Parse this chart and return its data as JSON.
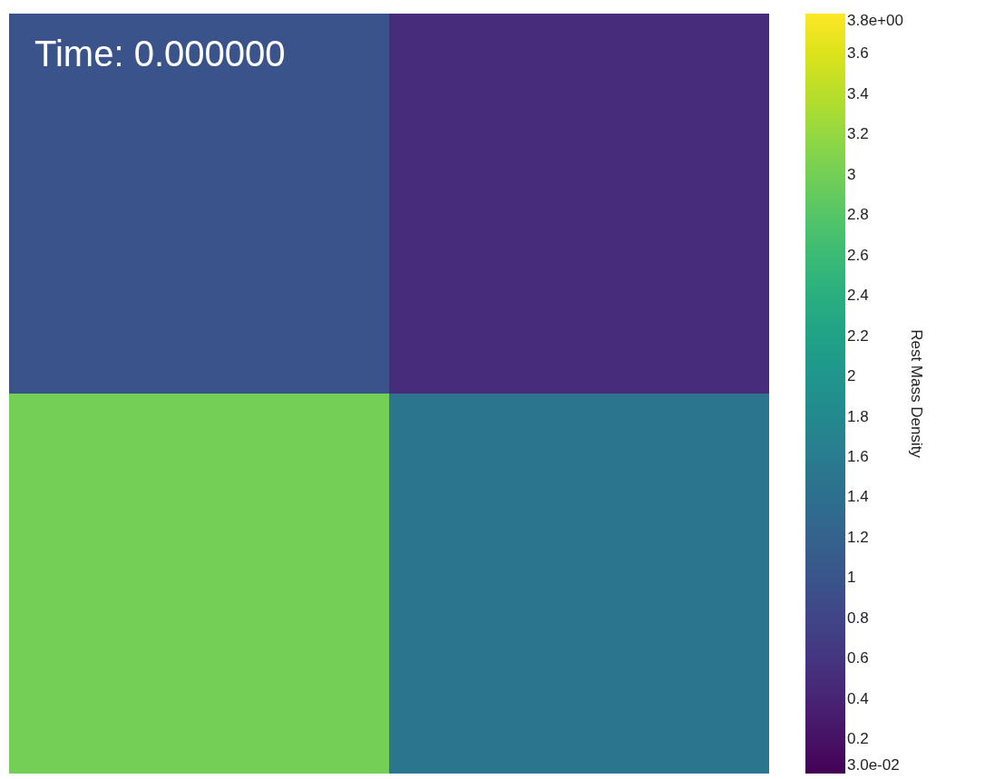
{
  "chart_data": {
    "type": "heatmap",
    "categories": [
      null,
      null
    ],
    "y_categories": [
      null,
      null
    ],
    "cells": [
      [
        1.0,
        0.5
      ],
      [
        3.0,
        1.5
      ]
    ],
    "clim": [
      0.03,
      3.8
    ],
    "cticks": [
      {
        "value": 0.03,
        "label": "3.0e-02"
      },
      0.2,
      0.4,
      0.6,
      0.8,
      1,
      1.2,
      1.4,
      1.6,
      1.8,
      2,
      2.2,
      2.4,
      2.6,
      2.8,
      3,
      3.2,
      3.4,
      3.6,
      {
        "value": 3.8,
        "label": "3.8e+00"
      }
    ],
    "clabel": "Rest Mass Density",
    "annotations": [
      "Time: 0.000000"
    ],
    "tick_labels": false
  }
}
